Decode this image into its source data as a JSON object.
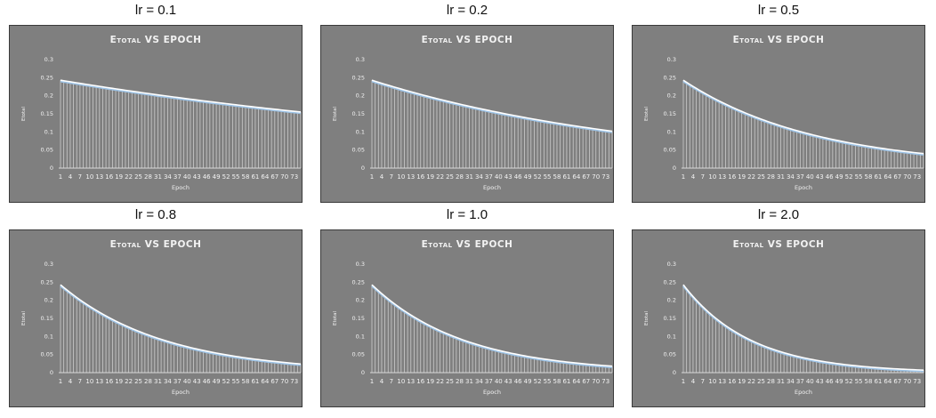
{
  "chart_data": [
    {
      "type": "line",
      "panel_title": "lr = 0.1",
      "title": "Etotal VS EPOCH",
      "xlabel": "Epoch",
      "ylabel": "Etotal",
      "ylim": [
        0,
        0.3
      ],
      "yticks": [
        "0",
        "0.05",
        "0.1",
        "0.15",
        "0.2",
        "0.25",
        "0.3"
      ],
      "x_range": [
        1,
        75
      ],
      "y_start": 0.243,
      "y_end": 0.155,
      "xticks": [
        "1",
        "4",
        "7",
        "10",
        "13",
        "16",
        "19",
        "22",
        "25",
        "28",
        "31",
        "34",
        "37",
        "40",
        "43",
        "46",
        "49",
        "52",
        "55",
        "58",
        "61",
        "64",
        "67",
        "70",
        "73"
      ],
      "grid": false,
      "legend": "none"
    },
    {
      "type": "line",
      "panel_title": "lr = 0.2",
      "title": "Etotal VS EPOCH",
      "xlabel": "Epoch",
      "ylabel": "Etotal",
      "ylim": [
        0,
        0.3
      ],
      "yticks": [
        "0",
        "0.05",
        "0.1",
        "0.15",
        "0.2",
        "0.25",
        "0.3"
      ],
      "x_range": [
        1,
        75
      ],
      "y_start": 0.243,
      "y_end": 0.102,
      "xticks": [
        "1",
        "4",
        "7",
        "10",
        "13",
        "16",
        "19",
        "22",
        "25",
        "28",
        "31",
        "34",
        "37",
        "40",
        "43",
        "46",
        "49",
        "52",
        "55",
        "58",
        "61",
        "64",
        "67",
        "70",
        "73"
      ],
      "grid": false,
      "legend": "none"
    },
    {
      "type": "line",
      "panel_title": "lr = 0.5",
      "title": "Etotal VS EPOCH",
      "xlabel": "Epoch",
      "ylabel": "Etotal",
      "ylim": [
        0,
        0.3
      ],
      "yticks": [
        "0",
        "0.05",
        "0.1",
        "0.15",
        "0.2",
        "0.25",
        "0.3"
      ],
      "x_range": [
        1,
        75
      ],
      "y_start": 0.243,
      "y_end": 0.04,
      "xticks": [
        "1",
        "4",
        "7",
        "10",
        "13",
        "16",
        "19",
        "22",
        "25",
        "28",
        "31",
        "34",
        "37",
        "40",
        "43",
        "46",
        "49",
        "52",
        "55",
        "58",
        "61",
        "64",
        "67",
        "70",
        "73"
      ],
      "grid": false,
      "legend": "none"
    },
    {
      "type": "line",
      "panel_title": "lr = 0.8",
      "title": "Etotal VS EPOCH",
      "xlabel": "Epoch",
      "ylabel": "Etotal",
      "ylim": [
        0,
        0.3
      ],
      "yticks": [
        "0",
        "0.05",
        "0.1",
        "0.15",
        "0.2",
        "0.25",
        "0.3"
      ],
      "x_range": [
        1,
        75
      ],
      "y_start": 0.243,
      "y_end": 0.024,
      "xticks": [
        "1",
        "4",
        "7",
        "10",
        "13",
        "16",
        "19",
        "22",
        "25",
        "28",
        "31",
        "34",
        "37",
        "40",
        "43",
        "46",
        "49",
        "52",
        "55",
        "58",
        "61",
        "64",
        "67",
        "70",
        "73"
      ],
      "grid": false,
      "legend": "none"
    },
    {
      "type": "line",
      "panel_title": "lr = 1.0",
      "title": "Etotal VS EPOCH",
      "xlabel": "Epoch",
      "ylabel": "Etotal",
      "ylim": [
        0,
        0.3
      ],
      "yticks": [
        "0",
        "0.05",
        "0.1",
        "0.15",
        "0.2",
        "0.25",
        "0.3"
      ],
      "x_range": [
        1,
        75
      ],
      "y_start": 0.243,
      "y_end": 0.018,
      "xticks": [
        "1",
        "4",
        "7",
        "10",
        "13",
        "16",
        "19",
        "22",
        "25",
        "28",
        "31",
        "34",
        "37",
        "40",
        "43",
        "46",
        "49",
        "52",
        "55",
        "58",
        "61",
        "64",
        "67",
        "70",
        "73"
      ],
      "grid": false,
      "legend": "none"
    },
    {
      "type": "line",
      "panel_title": "lr = 2.0",
      "title": "Etotal VS EPOCH",
      "xlabel": "Epoch",
      "ylabel": "Etotal",
      "ylim": [
        0,
        0.3
      ],
      "yticks": [
        "0",
        "0.05",
        "0.1",
        "0.15",
        "0.2",
        "0.25",
        "0.3"
      ],
      "x_range": [
        1,
        75
      ],
      "y_start": 0.243,
      "y_end": 0.007,
      "xticks": [
        "1",
        "4",
        "7",
        "10",
        "13",
        "16",
        "19",
        "22",
        "25",
        "28",
        "31",
        "34",
        "37",
        "40",
        "43",
        "46",
        "49",
        "52",
        "55",
        "58",
        "61",
        "64",
        "67",
        "70",
        "73"
      ],
      "grid": false,
      "legend": "none"
    }
  ],
  "colors": {
    "panel_bg": "#7f7f7f",
    "line": "#ffffff",
    "line_shadow": "#9dc3e6",
    "drop_lines": "#d9d9d9",
    "text": "#f2f2f2"
  }
}
